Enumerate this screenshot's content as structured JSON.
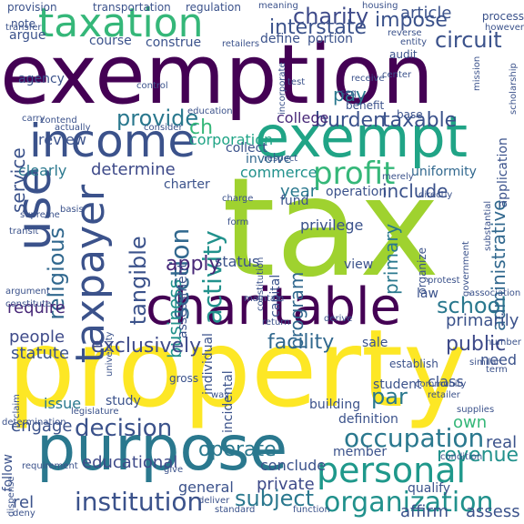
{
  "words": [
    {
      "text": "tax",
      "color": "#9fd22f",
      "rotation": "horizontal"
    },
    {
      "text": "property",
      "color": "#fde725",
      "rotation": "horizontal"
    },
    {
      "text": "exemption",
      "color": "#440154",
      "rotation": "horizontal"
    },
    {
      "text": "purpose",
      "color": "#2a788e",
      "rotation": "horizontal"
    },
    {
      "text": "exempt",
      "color": "#20a486",
      "rotation": "horizontal"
    },
    {
      "text": "charitable",
      "color": "#440154",
      "rotation": "horizontal"
    },
    {
      "text": "income",
      "color": "#3b528b",
      "rotation": "horizontal"
    },
    {
      "text": "taxation",
      "color": "#35b779",
      "rotation": "horizontal"
    },
    {
      "text": "use",
      "color": "#3b528b",
      "rotation": "vertical"
    },
    {
      "text": "taxpayer",
      "color": "#3b528b",
      "rotation": "vertical"
    },
    {
      "text": "personal",
      "color": "#1f988b",
      "rotation": "horizontal"
    },
    {
      "text": "organization",
      "color": "#21918c",
      "rotation": "horizontal"
    },
    {
      "text": "institution",
      "color": "#3b528b",
      "rotation": "horizontal"
    },
    {
      "text": "occupation",
      "color": "#2a788e",
      "rotation": "horizontal"
    },
    {
      "text": "decision",
      "color": "#3b528b",
      "rotation": "horizontal"
    },
    {
      "text": "profit",
      "color": "#35b779",
      "rotation": "horizontal"
    },
    {
      "text": "religious",
      "color": "#31688e",
      "rotation": "vertical"
    },
    {
      "text": "tangible",
      "color": "#3b528b",
      "rotation": "vertical"
    },
    {
      "text": "section",
      "color": "#31688e",
      "rotation": "vertical"
    },
    {
      "text": "activity",
      "color": "#21918c",
      "rotation": "vertical"
    },
    {
      "text": "business",
      "color": "#21918c",
      "rotation": "vertical"
    },
    {
      "text": "burden",
      "color": "#3b528b",
      "rotation": "horizontal"
    },
    {
      "text": "taxable",
      "color": "#3b528b",
      "rotation": "horizontal"
    },
    {
      "text": "apply",
      "color": "#482878",
      "rotation": "horizontal"
    },
    {
      "text": "exclusively",
      "color": "#3e4a89",
      "rotation": "horizontal"
    },
    {
      "text": "school",
      "color": "#2a788e",
      "rotation": "horizontal"
    },
    {
      "text": "facility",
      "color": "#31688e",
      "rotation": "horizontal"
    },
    {
      "text": "public",
      "color": "#3e4a89",
      "rotation": "horizontal"
    },
    {
      "text": "subject",
      "color": "#2a788e",
      "rotation": "horizontal"
    },
    {
      "text": "operate",
      "color": "#2a788e",
      "rotation": "horizontal"
    },
    {
      "text": "revenue",
      "color": "#21918c",
      "rotation": "horizontal"
    },
    {
      "text": "charity",
      "color": "#3e4a89",
      "rotation": "horizontal"
    },
    {
      "text": "impose",
      "color": "#3b528b",
      "rotation": "horizontal"
    },
    {
      "text": "interstate",
      "color": "#3b528b",
      "rotation": "horizontal"
    },
    {
      "text": "circuit",
      "color": "#3b528b",
      "rotation": "horizontal"
    },
    {
      "text": "provide",
      "color": "#2a788e",
      "rotation": "horizontal"
    },
    {
      "text": "include",
      "color": "#3b528b",
      "rotation": "horizontal"
    },
    {
      "text": "determine",
      "color": "#3e4a89",
      "rotation": "horizontal"
    },
    {
      "text": "administrative",
      "color": "#31688e",
      "rotation": "vertical"
    },
    {
      "text": "primary",
      "color": "#2a788e",
      "rotation": "vertical"
    },
    {
      "text": "service",
      "color": "#3b528b",
      "rotation": "vertical"
    },
    {
      "text": "program",
      "color": "#31688e",
      "rotation": "vertical"
    },
    {
      "text": "par",
      "color": "#2a788e",
      "rotation": "horizontal"
    },
    {
      "text": "ch",
      "color": "#35b779",
      "rotation": "horizontal"
    },
    {
      "text": "pay",
      "color": "#2a788e",
      "rotation": "horizontal"
    },
    {
      "text": "corporation",
      "color": "#20a486",
      "rotation": "horizontal"
    },
    {
      "text": "college",
      "color": "#482878",
      "rotation": "horizontal"
    },
    {
      "text": "review",
      "color": "#3b528b",
      "rotation": "horizontal"
    },
    {
      "text": "clearly",
      "color": "#2a788e",
      "rotation": "horizontal"
    },
    {
      "text": "require",
      "color": "#482878",
      "rotation": "horizontal"
    },
    {
      "text": "people",
      "color": "#3e4a89",
      "rotation": "horizontal"
    },
    {
      "text": "statute",
      "color": "#3b528b",
      "rotation": "horizontal"
    },
    {
      "text": "engage",
      "color": "#3b528b",
      "rotation": "horizontal"
    },
    {
      "text": "issue",
      "color": "#2a788e",
      "rotation": "horizontal"
    },
    {
      "text": "educational",
      "color": "#3e4a89",
      "rotation": "horizontal"
    },
    {
      "text": "primarily",
      "color": "#3b528b",
      "rotation": "horizontal"
    },
    {
      "text": "status",
      "color": "#3b528b",
      "rotation": "horizontal"
    },
    {
      "text": "article",
      "color": "#3b528b",
      "rotation": "horizontal"
    },
    {
      "text": "year",
      "color": "#2a788e",
      "rotation": "horizontal"
    },
    {
      "text": "commerce",
      "color": "#21918c",
      "rotation": "horizontal"
    },
    {
      "text": "involve",
      "color": "#31688e",
      "rotation": "horizontal"
    },
    {
      "text": "uniformity",
      "color": "#31688e",
      "rotation": "horizontal"
    },
    {
      "text": "operation",
      "color": "#3b528b",
      "rotation": "horizontal"
    },
    {
      "text": "privilege",
      "color": "#3b528b",
      "rotation": "horizontal"
    },
    {
      "text": "own",
      "color": "#35b779",
      "rotation": "horizontal"
    },
    {
      "text": "sale",
      "color": "#3b528b",
      "rotation": "horizontal"
    },
    {
      "text": "private",
      "color": "#3e4a89",
      "rotation": "horizontal"
    },
    {
      "text": "real",
      "color": "#3b528b",
      "rotation": "horizontal"
    },
    {
      "text": "student",
      "color": "#3b528b",
      "rotation": "horizontal"
    },
    {
      "text": "class",
      "color": "#3b528b",
      "rotation": "horizontal"
    },
    {
      "text": "definition",
      "color": "#3b528b",
      "rotation": "horizontal"
    },
    {
      "text": "building",
      "color": "#3b528b",
      "rotation": "horizontal"
    },
    {
      "text": "general",
      "color": "#3b528b",
      "rotation": "horizontal"
    },
    {
      "text": "member",
      "color": "#3b528b",
      "rotation": "horizontal"
    },
    {
      "text": "study",
      "color": "#3b528b",
      "rotation": "horizontal"
    },
    {
      "text": "law",
      "color": "#3b528b",
      "rotation": "horizontal"
    },
    {
      "text": "view",
      "color": "#3b528b",
      "rotation": "horizontal"
    },
    {
      "text": "fund",
      "color": "#3b528b",
      "rotation": "horizontal"
    },
    {
      "text": "collect",
      "color": "#3b528b",
      "rotation": "horizontal"
    },
    {
      "text": "charter",
      "color": "#3b528b",
      "rotation": "horizontal"
    },
    {
      "text": "course",
      "color": "#3b528b",
      "rotation": "horizontal"
    },
    {
      "text": "argue",
      "color": "#3b528b",
      "rotation": "horizontal"
    },
    {
      "text": "define",
      "color": "#3b528b",
      "rotation": "horizontal"
    },
    {
      "text": "portion",
      "color": "#3b528b",
      "rotation": "horizontal"
    },
    {
      "text": "construe",
      "color": "#3b528b",
      "rotation": "horizontal"
    },
    {
      "text": "note",
      "color": "#3b528b",
      "rotation": "horizontal"
    },
    {
      "text": "transfer",
      "color": "#3b528b",
      "rotation": "horizontal"
    },
    {
      "text": "agency",
      "color": "#3b528b",
      "rotation": "horizontal"
    },
    {
      "text": "incidental",
      "color": "#3b528b",
      "rotation": "vertical"
    },
    {
      "text": "capital",
      "color": "#3b528b",
      "rotation": "vertical"
    },
    {
      "text": "individual",
      "color": "#3b528b",
      "rotation": "vertical"
    },
    {
      "text": "assessment",
      "color": "#3b528b",
      "rotation": "vertical"
    },
    {
      "text": "application",
      "color": "#3b528b",
      "rotation": "vertical"
    },
    {
      "text": "organize",
      "color": "#3b528b",
      "rotation": "vertical"
    },
    {
      "text": "assess",
      "color": "#3b528b",
      "rotation": "horizontal"
    },
    {
      "text": "affirm",
      "color": "#3b528b",
      "rotation": "horizontal"
    },
    {
      "text": "need",
      "color": "#3b528b",
      "rotation": "horizontal"
    },
    {
      "text": "rel",
      "color": "#3b528b",
      "rotation": "horizontal"
    },
    {
      "text": "follow",
      "color": "#3b528b",
      "rotation": "vertical"
    },
    {
      "text": "conclude",
      "color": "#3b528b",
      "rotation": "horizontal"
    },
    {
      "text": "qualify",
      "color": "#3b528b",
      "rotation": "horizontal"
    },
    {
      "text": "transportation",
      "color": "#3b528b",
      "rotation": "horizontal"
    },
    {
      "text": "regulation",
      "color": "#3b528b",
      "rotation": "horizontal"
    },
    {
      "text": "provision",
      "color": "#3b528b",
      "rotation": "horizontal"
    },
    {
      "text": "meaning",
      "color": "#3b528b",
      "rotation": "horizontal"
    },
    {
      "text": "housing",
      "color": "#3b528b",
      "rotation": "horizontal"
    },
    {
      "text": "process",
      "color": "#3b528b",
      "rotation": "horizontal"
    },
    {
      "text": "however",
      "color": "#3b528b",
      "rotation": "horizontal"
    },
    {
      "text": "base",
      "color": "#3b528b",
      "rotation": "horizontal"
    },
    {
      "text": "benefit",
      "color": "#3b528b",
      "rotation": "horizontal"
    },
    {
      "text": "audit",
      "color": "#3b528b",
      "rotation": "horizontal"
    },
    {
      "text": "center",
      "color": "#3b528b",
      "rotation": "horizontal"
    },
    {
      "text": "receive",
      "color": "#3b528b",
      "rotation": "horizontal"
    },
    {
      "text": "education",
      "color": "#3b528b",
      "rotation": "horizontal"
    },
    {
      "text": "consider",
      "color": "#3b528b",
      "rotation": "horizontal"
    },
    {
      "text": "actually",
      "color": "#3b528b",
      "rotation": "horizontal"
    },
    {
      "text": "contend",
      "color": "#3b528b",
      "rotation": "horizontal"
    },
    {
      "text": "carry",
      "color": "#3b528b",
      "rotation": "horizontal"
    },
    {
      "text": "supreme",
      "color": "#3b528b",
      "rotation": "horizontal"
    },
    {
      "text": "basis",
      "color": "#3b528b",
      "rotation": "horizontal"
    },
    {
      "text": "transit",
      "color": "#3b528b",
      "rotation": "horizontal"
    },
    {
      "text": "charge",
      "color": "#3b528b",
      "rotation": "horizontal"
    },
    {
      "text": "respect",
      "color": "#3b528b",
      "rotation": "horizontal"
    },
    {
      "text": "merely",
      "color": "#3b528b",
      "rotation": "horizontal"
    },
    {
      "text": "directly",
      "color": "#3b528b",
      "rotation": "horizontal"
    },
    {
      "text": "substantial",
      "color": "#3b528b",
      "rotation": "vertical"
    },
    {
      "text": "form",
      "color": "#3b528b",
      "rotation": "horizontal"
    },
    {
      "text": "derive",
      "color": "#3b528b",
      "rotation": "horizontal"
    },
    {
      "text": "association",
      "color": "#3b528b",
      "rotation": "horizontal"
    },
    {
      "text": "protest",
      "color": "#3b528b",
      "rotation": "horizontal"
    },
    {
      "text": "scholarship",
      "color": "#3b528b",
      "rotation": "vertical"
    },
    {
      "text": "university",
      "color": "#3b528b",
      "rotation": "vertical"
    },
    {
      "text": "argument",
      "color": "#3b528b",
      "rotation": "horizontal"
    },
    {
      "text": "constitute",
      "color": "#3b528b",
      "rotation": "horizontal"
    },
    {
      "text": "legislature",
      "color": "#3b528b",
      "rotation": "horizontal"
    },
    {
      "text": "determination",
      "color": "#3b528b",
      "rotation": "horizontal"
    },
    {
      "text": "requirement",
      "color": "#3b528b",
      "rotation": "horizontal"
    },
    {
      "text": "dispense",
      "color": "#3b528b",
      "rotation": "vertical"
    },
    {
      "text": "give",
      "color": "#3b528b",
      "rotation": "horizontal"
    },
    {
      "text": "deliver",
      "color": "#3b528b",
      "rotation": "horizontal"
    },
    {
      "text": "standard",
      "color": "#3b528b",
      "rotation": "horizontal"
    },
    {
      "text": "function",
      "color": "#3b528b",
      "rotation": "horizontal"
    },
    {
      "text": "deny",
      "color": "#3b528b",
      "rotation": "horizontal"
    },
    {
      "text": "gross",
      "color": "#3b528b",
      "rotation": "horizontal"
    },
    {
      "text": "establish",
      "color": "#3b528b",
      "rotation": "horizontal"
    },
    {
      "text": "retailer",
      "color": "#3b528b",
      "rotation": "horizontal"
    },
    {
      "text": "condition",
      "color": "#3b528b",
      "rotation": "horizontal"
    },
    {
      "text": "number",
      "color": "#3b528b",
      "rotation": "horizontal"
    },
    {
      "text": "similar",
      "color": "#3b528b",
      "rotation": "horizontal"
    },
    {
      "text": "return",
      "color": "#3b528b",
      "rotation": "horizontal"
    },
    {
      "text": "way",
      "color": "#3b528b",
      "rotation": "horizontal"
    },
    {
      "text": "term",
      "color": "#3b528b",
      "rotation": "horizontal"
    },
    {
      "text": "claim",
      "color": "#3b528b",
      "rotation": "vertical"
    },
    {
      "text": "control",
      "color": "#3b528b",
      "rotation": "horizontal"
    },
    {
      "text": "entity",
      "color": "#3b528b",
      "rotation": "horizontal"
    },
    {
      "text": "reverse",
      "color": "#3b528b",
      "rotation": "horizontal"
    },
    {
      "text": "retailers",
      "color": "#3b528b",
      "rotation": "horizontal"
    },
    {
      "text": "supplies",
      "color": "#3b528b",
      "rotation": "horizontal"
    },
    {
      "text": "constitution",
      "color": "#3b528b",
      "rotation": "vertical"
    },
    {
      "text": "government",
      "color": "#3b528b",
      "rotation": "vertical"
    },
    {
      "text": "maintain",
      "color": "#3b528b",
      "rotation": "horizontal"
    },
    {
      "text": "incorporate",
      "color": "#3b528b",
      "rotation": "vertical"
    },
    {
      "text": "seq",
      "color": "#3b528b",
      "rotation": "horizontal"
    },
    {
      "text": "test",
      "color": "#3b528b",
      "rotation": "horizontal"
    },
    {
      "text": "mission",
      "color": "#3b528b",
      "rotation": "vertical"
    },
    {
      "text": "community",
      "color": "#3b528b",
      "rotation": "horizontal"
    }
  ]
}
